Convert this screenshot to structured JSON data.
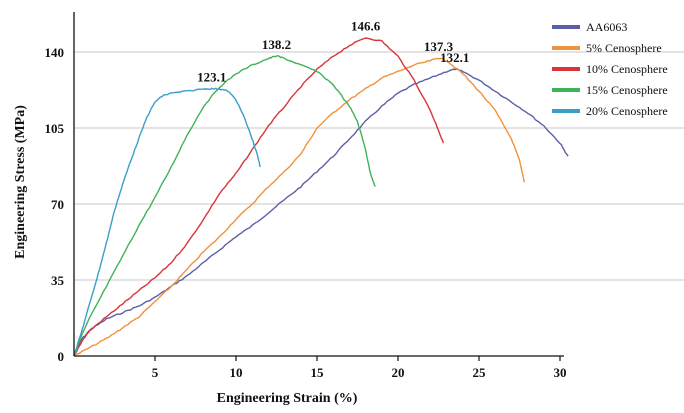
{
  "chart_data": {
    "type": "line",
    "xlabel": "Engineering Strain (%)",
    "ylabel": "Engineering Stress (MPa)",
    "xlim": [
      0,
      30
    ],
    "ylim": [
      0,
      140
    ],
    "x_ticks": [
      5,
      10,
      15,
      20,
      25,
      30
    ],
    "y_ticks": [
      0,
      35,
      70,
      105,
      140
    ],
    "y_grid": true,
    "legend_position": "top-right",
    "series": [
      {
        "name": "AA6063",
        "color": "#5b5fa8",
        "peak_label": "132.1",
        "peak": [
          23.5,
          132.1
        ],
        "points": [
          [
            0,
            0
          ],
          [
            0.5,
            8
          ],
          [
            1,
            12
          ],
          [
            2,
            17
          ],
          [
            3,
            20
          ],
          [
            4,
            23
          ],
          [
            5,
            27
          ],
          [
            6,
            32
          ],
          [
            7,
            37
          ],
          [
            8,
            43
          ],
          [
            9,
            49
          ],
          [
            10,
            55
          ],
          [
            11,
            60
          ],
          [
            12,
            66
          ],
          [
            13,
            72
          ],
          [
            14,
            78
          ],
          [
            15,
            85
          ],
          [
            16,
            92
          ],
          [
            17,
            100
          ],
          [
            18,
            108
          ],
          [
            19,
            115
          ],
          [
            20,
            121
          ],
          [
            21,
            125
          ],
          [
            22,
            128
          ],
          [
            23,
            131
          ],
          [
            23.5,
            132.1
          ],
          [
            24,
            131
          ],
          [
            25,
            127
          ],
          [
            26,
            122
          ],
          [
            27,
            117
          ],
          [
            28,
            112
          ],
          [
            29,
            106
          ],
          [
            30,
            98
          ],
          [
            30.5,
            92
          ]
        ]
      },
      {
        "name": "5% Cenosphere",
        "color": "#f0923c",
        "peak_label": "137.3",
        "peak": [
          22.5,
          137.3
        ],
        "points": [
          [
            0,
            0
          ],
          [
            1,
            4
          ],
          [
            2,
            8
          ],
          [
            3,
            13
          ],
          [
            4,
            18
          ],
          [
            5,
            25
          ],
          [
            6,
            32
          ],
          [
            7,
            40
          ],
          [
            8,
            48
          ],
          [
            9,
            55
          ],
          [
            10,
            63
          ],
          [
            11,
            70
          ],
          [
            12,
            78
          ],
          [
            13,
            85
          ],
          [
            14,
            93
          ],
          [
            15,
            105
          ],
          [
            16,
            112
          ],
          [
            17,
            118
          ],
          [
            18,
            123
          ],
          [
            19,
            128
          ],
          [
            20,
            131
          ],
          [
            21,
            134
          ],
          [
            22,
            136
          ],
          [
            22.5,
            137.3
          ],
          [
            23,
            136
          ],
          [
            24,
            130
          ],
          [
            25,
            122
          ],
          [
            26,
            113
          ],
          [
            27,
            100
          ],
          [
            27.5,
            90
          ],
          [
            27.8,
            80
          ]
        ]
      },
      {
        "name": "10% Cenosphere",
        "color": "#d8343a",
        "peak_label": "146.6",
        "peak": [
          18,
          146.6
        ],
        "points": [
          [
            0,
            0
          ],
          [
            0.5,
            7
          ],
          [
            1,
            12
          ],
          [
            2,
            18
          ],
          [
            3,
            24
          ],
          [
            4,
            30
          ],
          [
            5,
            36
          ],
          [
            6,
            43
          ],
          [
            7,
            52
          ],
          [
            8,
            63
          ],
          [
            9,
            75
          ],
          [
            10,
            84
          ],
          [
            11,
            95
          ],
          [
            12,
            106
          ],
          [
            13,
            115
          ],
          [
            14,
            124
          ],
          [
            15,
            132
          ],
          [
            16,
            138
          ],
          [
            17,
            143
          ],
          [
            18,
            146.6
          ],
          [
            19,
            145
          ],
          [
            20,
            138
          ],
          [
            21,
            127
          ],
          [
            22,
            113
          ],
          [
            22.5,
            104
          ],
          [
            22.8,
            98
          ]
        ]
      },
      {
        "name": "15% Cenosphere",
        "color": "#3fb35a",
        "peak_label": "138.2",
        "peak": [
          12.5,
          138.2
        ],
        "points": [
          [
            0,
            0
          ],
          [
            0.5,
            10
          ],
          [
            1,
            18
          ],
          [
            2,
            32
          ],
          [
            3,
            46
          ],
          [
            4,
            60
          ],
          [
            5,
            73
          ],
          [
            6,
            87
          ],
          [
            7,
            102
          ],
          [
            8,
            115
          ],
          [
            9,
            124
          ],
          [
            10,
            130
          ],
          [
            11,
            134
          ],
          [
            12,
            137
          ],
          [
            12.5,
            138.2
          ],
          [
            13,
            137
          ],
          [
            14,
            134
          ],
          [
            15,
            131
          ],
          [
            16,
            125
          ],
          [
            17,
            115
          ],
          [
            17.5,
            108
          ],
          [
            18,
            95
          ],
          [
            18.3,
            84
          ],
          [
            18.6,
            78
          ]
        ]
      },
      {
        "name": "20% Cenosphere",
        "color": "#3a9fc8",
        "peak_label": "123.1",
        "peak": [
          8.5,
          123.1
        ],
        "points": [
          [
            0,
            0
          ],
          [
            0.5,
            12
          ],
          [
            1,
            25
          ],
          [
            1.5,
            38
          ],
          [
            2,
            52
          ],
          [
            2.5,
            67
          ],
          [
            3,
            79
          ],
          [
            3.5,
            90
          ],
          [
            4,
            100
          ],
          [
            4.5,
            110
          ],
          [
            5,
            117
          ],
          [
            5.5,
            120
          ],
          [
            6,
            121
          ],
          [
            7,
            122
          ],
          [
            8,
            123
          ],
          [
            8.5,
            123.1
          ],
          [
            9,
            123
          ],
          [
            9.5,
            122
          ],
          [
            10,
            118
          ],
          [
            10.5,
            110
          ],
          [
            11,
            100
          ],
          [
            11.3,
            93
          ],
          [
            11.5,
            87
          ]
        ]
      }
    ]
  }
}
